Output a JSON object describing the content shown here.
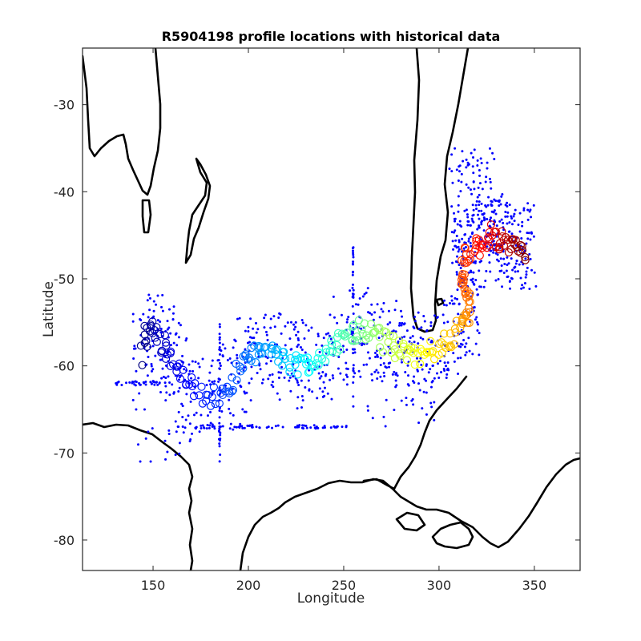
{
  "chart_data": {
    "type": "scatter",
    "title": "R5904198 profile locations with historical data",
    "xlabel": "Longitude",
    "ylabel": "Latitude",
    "xlim": [
      113,
      374
    ],
    "ylim": [
      -83.5,
      -23.5
    ],
    "xticks": [
      150,
      200,
      250,
      300,
      350
    ],
    "yticks": [
      -30,
      -40,
      -50,
      -60,
      -70,
      -80
    ],
    "grid": false,
    "legend": "none",
    "colors": {
      "historical": "#0000ff",
      "coastline": "#000000",
      "colormap": "jet"
    },
    "series": [
      {
        "marker": "circle",
        "x": [
          144,
          146,
          149,
          152,
          155,
          158,
          162,
          166,
          171,
          176,
          181,
          186,
          190,
          194,
          198,
          202,
          206,
          210,
          214,
          218,
          222,
          226,
          230,
          234,
          238,
          242,
          246,
          250,
          254,
          258,
          262,
          266,
          270,
          274,
          278,
          282,
          286,
          290,
          294,
          298,
          302,
          306,
          310,
          313,
          315,
          316,
          315,
          313,
          312,
          313,
          316,
          319,
          322,
          325,
          328,
          331,
          334,
          337,
          340,
          343,
          345
        ],
        "y": [
          -59,
          -56.5,
          -56,
          -56.5,
          -57.5,
          -58.5,
          -59.5,
          -61,
          -62.5,
          -63.5,
          -63.5,
          -63,
          -62.5,
          -61,
          -59.5,
          -59,
          -58,
          -57.5,
          -58,
          -59,
          -59.5,
          -60,
          -60,
          -59.5,
          -59,
          -58.5,
          -57.5,
          -57,
          -56.5,
          -56,
          -56,
          -56.5,
          -57,
          -57.5,
          -58,
          -58.5,
          -58.5,
          -59,
          -58.5,
          -58,
          -57.5,
          -57,
          -56,
          -55,
          -54,
          -53,
          -51.5,
          -50.5,
          -49.5,
          -48,
          -47,
          -46.5,
          -46,
          -45.5,
          -45,
          -45.5,
          -45.5,
          -46,
          -46.5,
          -47,
          -46.5
        ]
      }
    ]
  }
}
